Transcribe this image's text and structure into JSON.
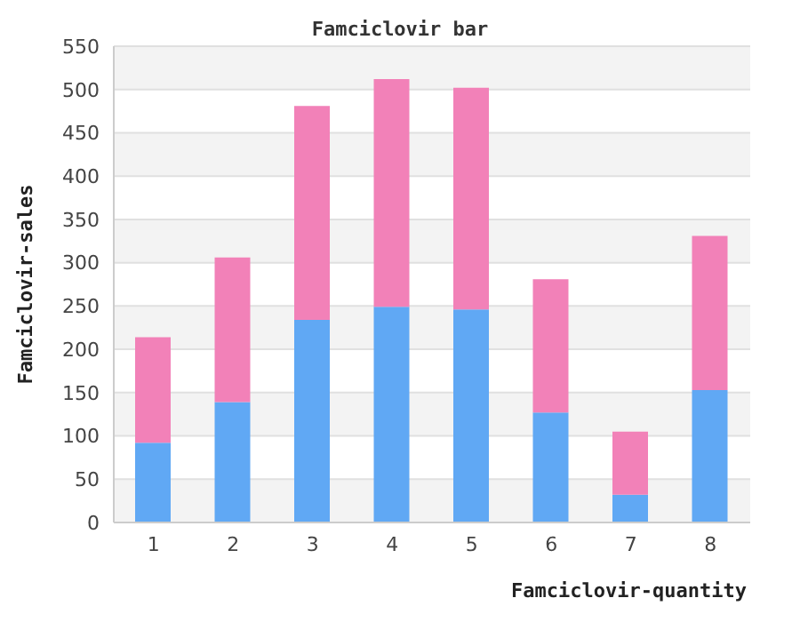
{
  "chart_data": {
    "type": "bar",
    "title": "Famciclovir bar",
    "xlabel": "Famciclovir-quantity",
    "ylabel": "Famciclovir-sales",
    "categories": [
      "1",
      "2",
      "3",
      "4",
      "5",
      "6",
      "7",
      "8"
    ],
    "stacked": true,
    "series": [
      {
        "color": "#60a8f4",
        "values": [
          92,
          139,
          234,
          249,
          246,
          127,
          32,
          153
        ]
      },
      {
        "color": "#f281b8",
        "values": [
          122,
          167,
          247,
          263,
          256,
          154,
          73,
          178
        ]
      }
    ],
    "ylim": [
      0,
      550
    ],
    "yticks": [
      0,
      50,
      100,
      150,
      200,
      250,
      300,
      350,
      400,
      450,
      500,
      550
    ],
    "grid": "y"
  }
}
